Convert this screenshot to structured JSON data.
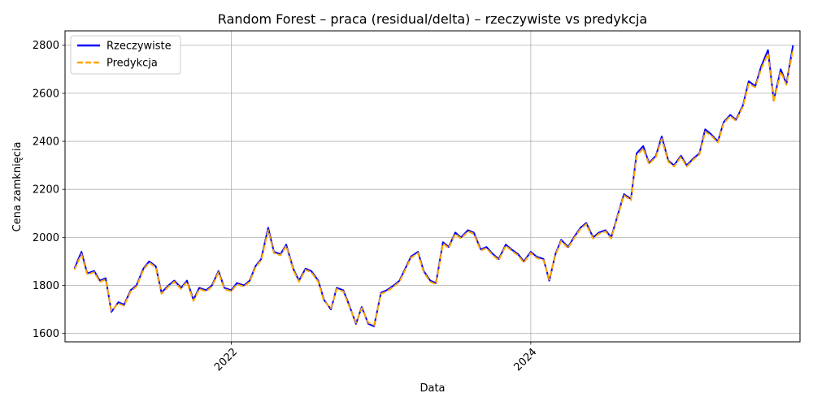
{
  "chart_data": {
    "type": "line",
    "title": "Random Forest – praca (residual/delta) – rzeczywiste vs predykcja",
    "xlabel": "Data",
    "ylabel": "Cena zamknięcia",
    "x_ticks": [
      "2022",
      "2024"
    ],
    "y_ticks": [
      1600,
      1800,
      2000,
      2200,
      2400,
      2600,
      2800
    ],
    "xlim": [
      "2020-11-22",
      "2025-10-18"
    ],
    "ylim": [
      1565,
      2860
    ],
    "grid": true,
    "legend": "top-left",
    "x": [
      "2020-12-15",
      "2021-01-01",
      "2021-01-15",
      "2021-02-01",
      "2021-02-15",
      "2021-03-01",
      "2021-03-15",
      "2021-04-01",
      "2021-04-15",
      "2021-05-01",
      "2021-05-15",
      "2021-06-01",
      "2021-06-15",
      "2021-07-01",
      "2021-07-15",
      "2021-08-01",
      "2021-08-15",
      "2021-09-01",
      "2021-09-15",
      "2021-10-01",
      "2021-10-15",
      "2021-11-01",
      "2021-11-15",
      "2021-12-01",
      "2021-12-15",
      "2022-01-01",
      "2022-01-15",
      "2022-02-01",
      "2022-02-15",
      "2022-03-01",
      "2022-03-15",
      "2022-04-01",
      "2022-04-15",
      "2022-05-01",
      "2022-05-15",
      "2022-06-01",
      "2022-06-15",
      "2022-07-01",
      "2022-07-15",
      "2022-08-01",
      "2022-08-15",
      "2022-09-01",
      "2022-09-15",
      "2022-10-01",
      "2022-10-15",
      "2022-11-01",
      "2022-11-15",
      "2022-12-01",
      "2022-12-15",
      "2023-01-01",
      "2023-01-15",
      "2023-02-01",
      "2023-02-15",
      "2023-03-01",
      "2023-03-15",
      "2023-04-01",
      "2023-04-15",
      "2023-05-01",
      "2023-05-15",
      "2023-06-01",
      "2023-06-15",
      "2023-07-01",
      "2023-07-15",
      "2023-08-01",
      "2023-08-15",
      "2023-09-01",
      "2023-09-15",
      "2023-10-01",
      "2023-10-15",
      "2023-11-01",
      "2023-11-15",
      "2023-12-01",
      "2023-12-15",
      "2024-01-01",
      "2024-01-15",
      "2024-02-01",
      "2024-02-15",
      "2024-03-01",
      "2024-03-15",
      "2024-04-01",
      "2024-04-15",
      "2024-05-01",
      "2024-05-15",
      "2024-06-01",
      "2024-06-15",
      "2024-07-01",
      "2024-07-15",
      "2024-08-01",
      "2024-08-15",
      "2024-09-01",
      "2024-09-15",
      "2024-10-01",
      "2024-10-15",
      "2024-11-01",
      "2024-11-15",
      "2024-12-01",
      "2024-12-15",
      "2025-01-01",
      "2025-01-15",
      "2025-02-01",
      "2025-02-15",
      "2025-03-01",
      "2025-03-15",
      "2025-04-01",
      "2025-04-15",
      "2025-05-01",
      "2025-05-15",
      "2025-06-01",
      "2025-06-15",
      "2025-07-01",
      "2025-07-15",
      "2025-08-01",
      "2025-08-15",
      "2025-09-01",
      "2025-09-15",
      "2025-10-01"
    ],
    "series": [
      {
        "name": "Rzeczywiste",
        "color": "#0000ff",
        "style": "solid",
        "values": [
          1870,
          1940,
          1850,
          1860,
          1820,
          1830,
          1690,
          1730,
          1720,
          1780,
          1800,
          1870,
          1900,
          1880,
          1770,
          1800,
          1820,
          1790,
          1820,
          1740,
          1790,
          1780,
          1800,
          1860,
          1790,
          1780,
          1810,
          1800,
          1820,
          1880,
          1910,
          2040,
          1940,
          1930,
          1970,
          1870,
          1820,
          1870,
          1860,
          1820,
          1740,
          1700,
          1790,
          1780,
          1720,
          1640,
          1710,
          1640,
          1630,
          1770,
          1780,
          1800,
          1820,
          1870,
          1920,
          1940,
          1860,
          1820,
          1810,
          1980,
          1960,
          2020,
          2000,
          2030,
          2020,
          1950,
          1960,
          1930,
          1910,
          1970,
          1950,
          1930,
          1900,
          1940,
          1920,
          1910,
          1820,
          1930,
          1990,
          1960,
          2000,
          2040,
          2060,
          2000,
          2020,
          2030,
          2000,
          2100,
          2180,
          2160,
          2350,
          2380,
          2310,
          2340,
          2420,
          2320,
          2300,
          2340,
          2300,
          2330,
          2350,
          2450,
          2430,
          2400,
          2480,
          2510,
          2490,
          2550,
          2650,
          2630,
          2710,
          2780,
          2570,
          2700,
          2640,
          2800
        ]
      },
      {
        "name": "Predykcja",
        "color": "#ffa500",
        "style": "dashed",
        "values": [
          1865,
          1930,
          1845,
          1855,
          1815,
          1825,
          1695,
          1725,
          1715,
          1775,
          1795,
          1865,
          1895,
          1875,
          1765,
          1795,
          1815,
          1785,
          1815,
          1735,
          1785,
          1775,
          1795,
          1855,
          1785,
          1775,
          1805,
          1795,
          1815,
          1875,
          1905,
          2030,
          1935,
          1925,
          1965,
          1865,
          1815,
          1865,
          1855,
          1815,
          1735,
          1705,
          1785,
          1775,
          1715,
          1645,
          1705,
          1645,
          1635,
          1765,
          1775,
          1795,
          1815,
          1865,
          1915,
          1935,
          1855,
          1815,
          1805,
          1975,
          1955,
          2015,
          1995,
          2025,
          2015,
          1945,
          1955,
          1925,
          1905,
          1965,
          1945,
          1925,
          1895,
          1935,
          1915,
          1905,
          1825,
          1925,
          1985,
          1955,
          1995,
          2035,
          2055,
          1995,
          2015,
          2025,
          1995,
          2095,
          2175,
          2155,
          2340,
          2370,
          2305,
          2335,
          2410,
          2315,
          2295,
          2335,
          2295,
          2325,
          2345,
          2440,
          2425,
          2395,
          2475,
          2505,
          2485,
          2545,
          2640,
          2625,
          2700,
          2765,
          2565,
          2690,
          2635,
          2785
        ]
      }
    ]
  }
}
